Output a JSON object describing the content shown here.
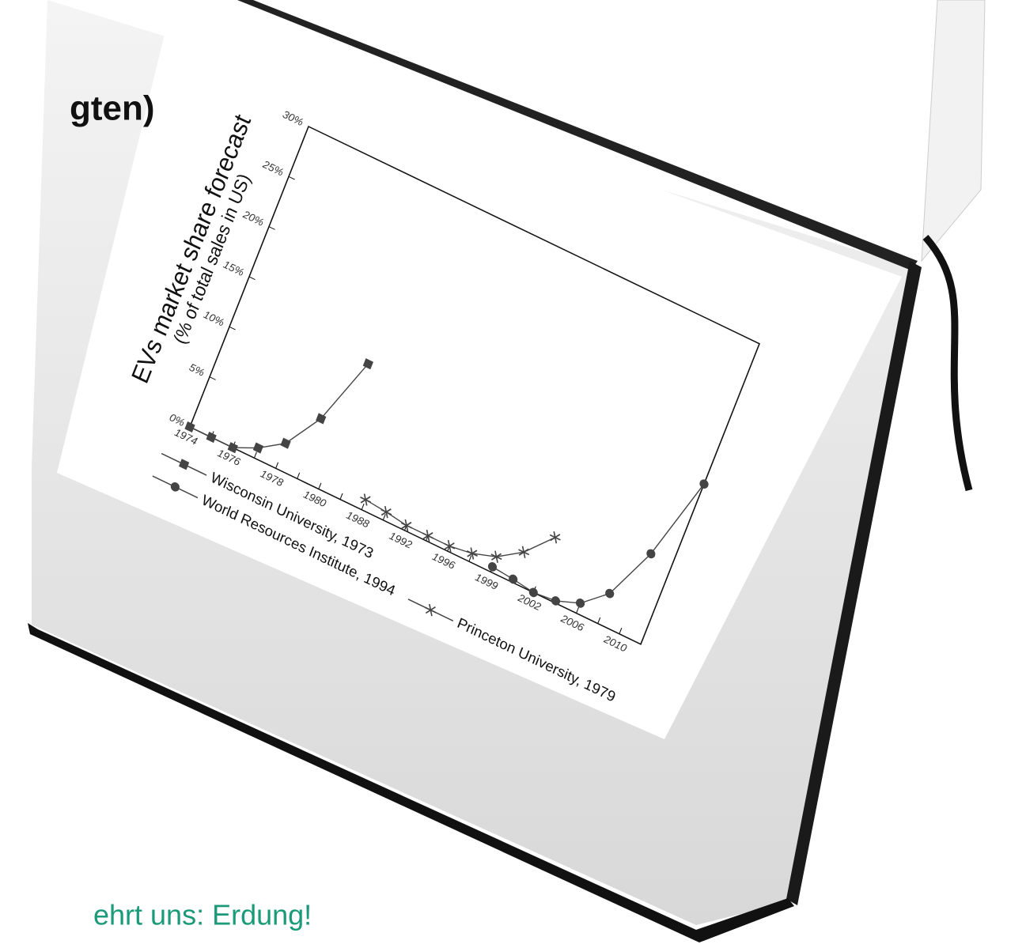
{
  "slide": {
    "title_fragment": "gten)",
    "footer_fragment": "ehrt uns: Erdung!"
  },
  "chart_data": {
    "type": "line",
    "y_label": "EVs market share forecast",
    "y_sublabel": "(% of total sales in US)",
    "categories": [
      "1974",
      null,
      "1976",
      null,
      "1978",
      null,
      "1980",
      null,
      "1988",
      null,
      "1992",
      null,
      "1996",
      null,
      "1999",
      null,
      "2002",
      null,
      "2006",
      null,
      "2010",
      null
    ],
    "series": [
      {
        "name": "Wisconsin University, 1973",
        "color": "#444444",
        "marker": "square",
        "values": [
          0,
          0,
          0,
          1,
          2.5,
          6,
          12.5,
          null,
          null,
          null,
          null,
          null,
          null,
          null,
          null,
          null,
          null,
          null,
          null,
          null,
          null,
          null
        ]
      },
      {
        "name": "World Resources Institute, 1994",
        "color": "#444444",
        "marker": "circle",
        "values": [
          null,
          null,
          null,
          null,
          null,
          null,
          null,
          null,
          null,
          null,
          null,
          null,
          null,
          null,
          0.5,
          0.3,
          0,
          0.2,
          1,
          3,
          8,
          16
        ]
      },
      {
        "name": "Princeton University, 1979",
        "color": "#444444",
        "marker": "star",
        "values": [
          null,
          null,
          null,
          null,
          null,
          null,
          null,
          null,
          1,
          0.8,
          0.5,
          0.5,
          0.5,
          0.8,
          1.5,
          3,
          5.5,
          null,
          null,
          null,
          null,
          null
        ]
      }
    ],
    "ylim": [
      0,
      30
    ],
    "yticks": [
      {
        "value": 0,
        "label": "0%"
      },
      {
        "value": 5,
        "label": "5%"
      },
      {
        "value": 10,
        "label": "10%"
      },
      {
        "value": 15,
        "label": "15%"
      },
      {
        "value": 20,
        "label": "20%"
      },
      {
        "value": 25,
        "label": "25%"
      },
      {
        "value": 30,
        "label": "30%"
      }
    ],
    "grid": false,
    "legend": "bottom"
  }
}
